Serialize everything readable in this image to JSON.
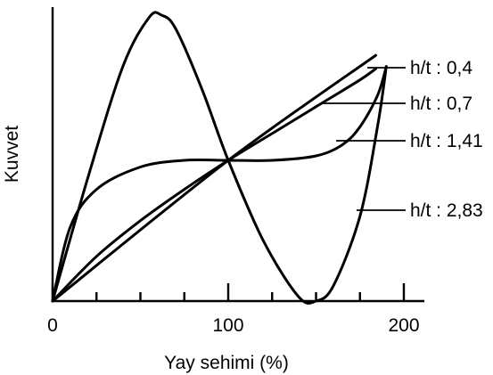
{
  "chart_data": {
    "type": "line",
    "xlabel": "Yay sehimi (%)",
    "ylabel": "Kuvvet",
    "xlim": [
      0,
      212
    ],
    "ylim": [
      0,
      1.3
    ],
    "x_ticks": [
      0,
      100,
      200
    ],
    "minor_ticks": [
      25,
      50,
      75,
      125,
      150,
      175
    ],
    "y_ticks": [],
    "grid": false,
    "legend": "right, labels with leader lines",
    "series": [
      {
        "name": "h/t : 0,4",
        "x": [
          0,
          100,
          184
        ],
        "y": [
          0,
          0.63,
          1.1
        ]
      },
      {
        "name": "h/t : 0,7",
        "x": [
          0,
          25,
          50,
          75,
          100,
          125,
          150,
          175,
          184
        ],
        "y": [
          0,
          0.2,
          0.36,
          0.5,
          0.63,
          0.75,
          0.87,
          0.99,
          1.04
        ]
      },
      {
        "name": "h/t : 1,41",
        "x": [
          0,
          10,
          25,
          50,
          75,
          100,
          125,
          150,
          165,
          175,
          185,
          190
        ],
        "y": [
          0,
          0.33,
          0.5,
          0.6,
          0.63,
          0.63,
          0.63,
          0.65,
          0.7,
          0.78,
          0.92,
          1.05
        ]
      },
      {
        "name": "h/t : 2,83",
        "x": [
          0,
          20,
          40,
          55,
          62,
          70,
          85,
          100,
          120,
          140,
          150,
          160,
          175,
          185,
          190
        ],
        "y": [
          0,
          0.55,
          1.05,
          1.27,
          1.28,
          1.22,
          0.95,
          0.63,
          0.27,
          0.02,
          0.0,
          0.07,
          0.38,
          0.78,
          1.05
        ]
      }
    ]
  }
}
